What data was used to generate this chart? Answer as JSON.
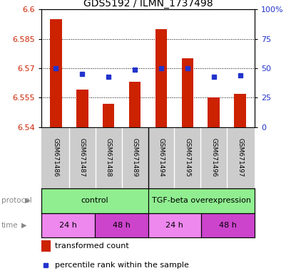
{
  "title": "GDS5192 / ILMN_1737498",
  "samples": [
    "GSM671486",
    "GSM671487",
    "GSM671488",
    "GSM671489",
    "GSM671494",
    "GSM671495",
    "GSM671496",
    "GSM671497"
  ],
  "red_values": [
    6.595,
    6.559,
    6.552,
    6.563,
    6.59,
    6.575,
    6.555,
    6.557
  ],
  "blue_values_pct": [
    50,
    45,
    43,
    49,
    50,
    50,
    43,
    44
  ],
  "ylim_left": [
    6.54,
    6.6
  ],
  "ylim_right": [
    0,
    100
  ],
  "yticks_left": [
    6.54,
    6.555,
    6.57,
    6.585,
    6.6
  ],
  "yticks_right": [
    0,
    25,
    50,
    75,
    100
  ],
  "ytick_labels_left": [
    "6.54",
    "6.555",
    "6.57",
    "6.585",
    "6.6"
  ],
  "ytick_labels_right": [
    "0",
    "25",
    "50",
    "75",
    "100%"
  ],
  "red_color": "#CC2200",
  "blue_color": "#2233CC",
  "bar_bottom": 6.54,
  "bar_width": 0.45,
  "tick_color_left": "#CC2200",
  "tick_color_right": "#2233CC",
  "bg_names": "#CCCCCC",
  "protocol_color": "#90EE90",
  "time_colors": [
    "#EE88EE",
    "#CC44CC",
    "#EE88EE",
    "#CC44CC"
  ],
  "time_labels": [
    "24 h",
    "48 h",
    "24 h",
    "48 h"
  ],
  "protocol_labels": [
    "control",
    "TGF-beta overexpression"
  ],
  "legend_red_label": "transformed count",
  "legend_blue_label": "percentile rank within the sample"
}
